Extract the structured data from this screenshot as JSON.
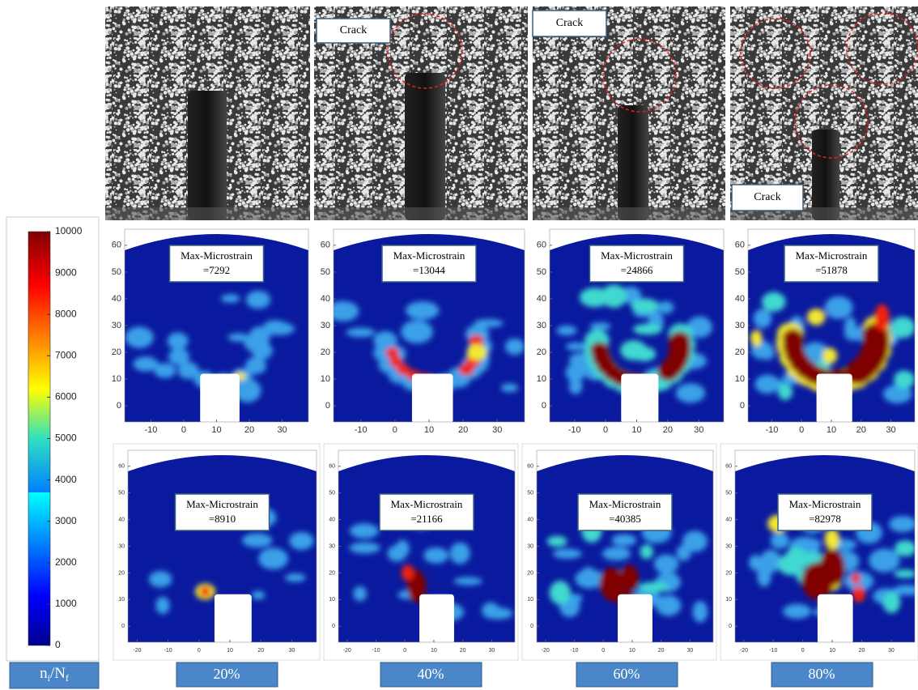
{
  "colorbar": {
    "ticks": [
      0,
      1000,
      2000,
      3000,
      4000,
      5000,
      6000,
      7000,
      8000,
      9000,
      10000
    ],
    "title": [
      "n",
      "i",
      "/N",
      "f"
    ]
  },
  "photos": {
    "crack_labels": [
      "Crack",
      "Crack",
      "Crack"
    ]
  },
  "strain_rows": [
    {
      "xticks": [
        -10,
        0,
        10,
        20,
        30
      ],
      "yticks": [
        0,
        10,
        20,
        30,
        40,
        50,
        60
      ],
      "panels": [
        {
          "label": "Max-Microstrain",
          "value": "=7292"
        },
        {
          "label": "Max-Microstrain",
          "value": "=13044"
        },
        {
          "label": "Max-Microstrain",
          "value": "=24866"
        },
        {
          "label": "Max-Microstrain",
          "value": "=51878"
        }
      ]
    },
    {
      "xticks": [
        -20,
        -10,
        0,
        10,
        20,
        30
      ],
      "yticks": [
        0,
        10,
        20,
        30,
        40,
        50,
        60
      ],
      "panels": [
        {
          "label": "Max-Microstrain",
          "value": "=8910"
        },
        {
          "label": "Max-Microstrain",
          "value": "=21166"
        },
        {
          "label": "Max-Microstrain",
          "value": "=40385"
        },
        {
          "label": "Max-Microstrain",
          "value": "=82978"
        }
      ]
    }
  ],
  "stages": [
    "20%",
    "40%",
    "60%",
    "80%"
  ]
}
